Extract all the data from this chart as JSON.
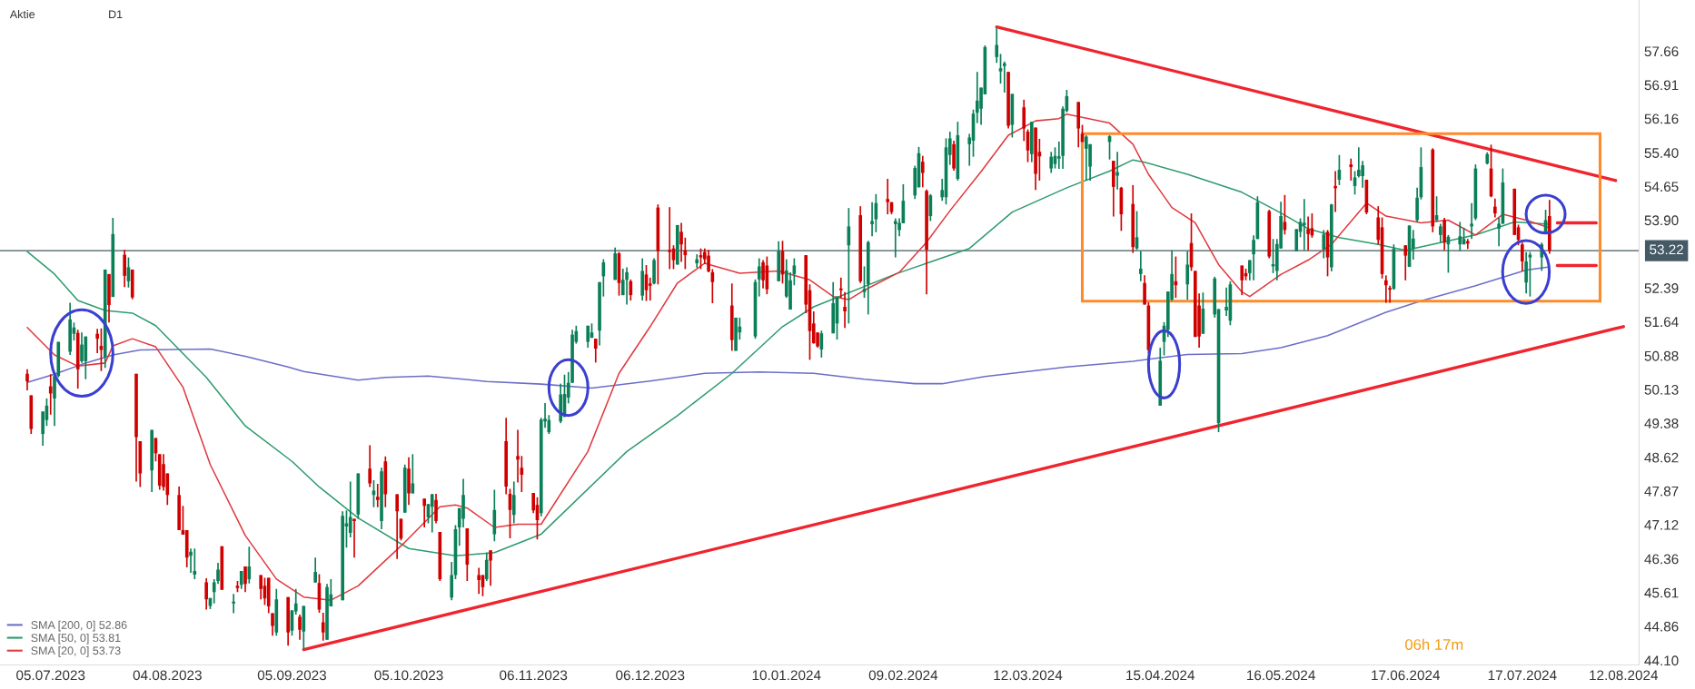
{
  "chart_data": {
    "type": "candlestick",
    "annotations": [
      "Aktie",
      "D1",
      "06h 17m"
    ],
    "x": [
      "2023-06-29",
      "2023-06-30",
      "2023-07-03",
      "2023-07-04",
      "2023-07-05",
      "2023-07-06",
      "2023-07-07",
      "2023-07-10",
      "2023-07-11",
      "2023-07-12",
      "2023-07-13",
      "2023-07-14",
      "2023-07-17",
      "2023-07-18",
      "2023-07-19",
      "2023-07-20",
      "2023-07-21",
      "2023-07-24",
      "2023-07-25",
      "2023-07-26",
      "2023-07-27",
      "2023-07-28",
      "2023-07-31",
      "2023-08-01",
      "2023-08-02",
      "2023-08-03",
      "2023-08-04",
      "2023-08-07",
      "2023-08-08",
      "2023-08-09",
      "2023-08-10",
      "2023-08-11",
      "2023-08-14",
      "2023-08-15",
      "2023-08-16",
      "2023-08-17",
      "2023-08-18",
      "2023-08-21",
      "2023-08-22",
      "2023-08-23",
      "2023-08-24",
      "2023-08-25",
      "2023-08-28",
      "2023-08-29",
      "2023-08-30",
      "2023-08-31",
      "2023-09-01",
      "2023-09-04",
      "2023-09-05",
      "2023-09-06",
      "2023-09-07",
      "2023-09-08",
      "2023-09-11",
      "2023-09-12",
      "2023-09-13",
      "2023-09-14",
      "2023-09-15",
      "2023-09-18",
      "2023-09-19",
      "2023-09-20",
      "2023-09-21",
      "2023-09-22",
      "2023-09-25",
      "2023-09-26",
      "2023-09-27",
      "2023-09-28",
      "2023-09-29",
      "2023-10-02",
      "2023-10-03",
      "2023-10-04",
      "2023-10-05",
      "2023-10-06",
      "2023-10-09",
      "2023-10-10",
      "2023-10-11",
      "2023-10-12",
      "2023-10-13",
      "2023-10-16",
      "2023-10-17",
      "2023-10-18",
      "2023-10-19",
      "2023-10-20",
      "2023-10-23",
      "2023-10-24",
      "2023-10-25",
      "2023-10-26",
      "2023-10-27",
      "2023-10-30",
      "2023-10-31",
      "2023-11-01",
      "2023-11-02",
      "2023-11-03",
      "2023-11-06",
      "2023-11-07",
      "2023-11-08",
      "2023-11-09",
      "2023-11-10",
      "2023-11-13",
      "2023-11-14",
      "2023-11-15",
      "2023-11-16",
      "2023-11-17",
      "2023-11-20",
      "2023-11-21",
      "2023-11-22",
      "2023-11-23",
      "2023-11-24",
      "2023-11-27",
      "2023-11-28",
      "2023-11-29",
      "2023-11-30",
      "2023-12-01",
      "2023-12-04",
      "2023-12-05",
      "2023-12-06",
      "2023-12-07",
      "2023-12-08",
      "2023-12-11",
      "2023-12-12",
      "2023-12-13",
      "2023-12-14",
      "2023-12-15",
      "2023-12-18",
      "2023-12-19",
      "2023-12-20",
      "2023-12-21",
      "2023-12-22",
      "2023-12-27",
      "2023-12-28",
      "2023-12-29",
      "2024-01-02",
      "2024-01-03",
      "2024-01-04",
      "2024-01-05",
      "2024-01-08",
      "2024-01-09",
      "2024-01-10",
      "2024-01-11",
      "2024-01-12",
      "2024-01-15",
      "2024-01-16",
      "2024-01-17",
      "2024-01-18",
      "2024-01-19",
      "2024-01-22",
      "2024-01-23",
      "2024-01-24",
      "2024-01-25",
      "2024-01-26",
      "2024-01-29",
      "2024-01-30",
      "2024-01-31",
      "2024-02-01",
      "2024-02-02",
      "2024-02-05",
      "2024-02-06",
      "2024-02-07",
      "2024-02-08",
      "2024-02-09",
      "2024-02-12",
      "2024-02-13",
      "2024-02-14",
      "2024-02-15",
      "2024-02-16",
      "2024-02-19",
      "2024-02-20",
      "2024-02-21",
      "2024-02-22",
      "2024-02-23",
      "2024-02-26",
      "2024-02-27",
      "2024-02-28",
      "2024-02-29",
      "2024-03-01",
      "2024-03-04",
      "2024-03-05",
      "2024-03-06",
      "2024-03-07",
      "2024-03-08",
      "2024-03-11",
      "2024-03-12",
      "2024-03-13",
      "2024-03-14",
      "2024-03-15",
      "2024-03-18",
      "2024-03-19",
      "2024-03-20",
      "2024-03-21",
      "2024-03-22",
      "2024-03-25",
      "2024-03-26",
      "2024-03-27",
      "2024-03-28",
      "2024-04-02",
      "2024-04-03",
      "2024-04-04",
      "2024-04-05",
      "2024-04-08",
      "2024-04-09",
      "2024-04-10",
      "2024-04-11",
      "2024-04-12",
      "2024-04-15",
      "2024-04-16",
      "2024-04-17",
      "2024-04-18",
      "2024-04-19",
      "2024-04-22",
      "2024-04-23",
      "2024-04-24",
      "2024-04-25",
      "2024-04-26",
      "2024-04-29",
      "2024-04-30",
      "2024-05-02",
      "2024-05-03",
      "2024-05-06",
      "2024-05-07",
      "2024-05-08",
      "2024-05-09",
      "2024-05-10",
      "2024-05-13",
      "2024-05-14",
      "2024-05-15",
      "2024-05-16",
      "2024-05-17",
      "2024-05-20",
      "2024-05-21",
      "2024-05-22",
      "2024-05-23",
      "2024-05-24",
      "2024-05-27",
      "2024-05-28",
      "2024-05-29",
      "2024-05-30",
      "2024-05-31",
      "2024-06-03",
      "2024-06-04",
      "2024-06-05",
      "2024-06-06",
      "2024-06-07",
      "2024-06-10",
      "2024-06-11",
      "2024-06-12",
      "2024-06-13",
      "2024-06-14",
      "2024-06-17",
      "2024-06-18",
      "2024-06-19",
      "2024-06-20",
      "2024-06-21",
      "2024-06-24",
      "2024-06-25",
      "2024-06-26",
      "2024-06-27",
      "2024-06-28",
      "2024-07-01",
      "2024-07-02",
      "2024-07-03",
      "2024-07-04",
      "2024-07-05",
      "2024-07-08",
      "2024-07-09",
      "2024-07-10",
      "2024-07-11",
      "2024-07-12",
      "2024-07-15",
      "2024-07-16",
      "2024-07-17",
      "2024-07-18",
      "2024-07-19",
      "2024-07-22",
      "2024-07-23",
      "2024-07-24"
    ],
    "ohlc": [
      [
        50.48,
        50.58,
        50.11,
        50.31
      ],
      [
        50.0,
        50.0,
        49.14,
        49.25
      ],
      [
        49.14,
        49.64,
        48.88,
        49.64
      ],
      [
        49.45,
        49.93,
        49.32,
        49.77
      ],
      [
        50.2,
        50.47,
        49.57,
        50.04
      ],
      [
        49.93,
        50.43,
        49.32,
        50.43
      ],
      [
        50.43,
        51.19,
        50.4,
        51.19
      ],
      [
        50.97,
        52.06,
        50.9,
        51.69
      ],
      [
        51.37,
        51.62,
        51.22,
        51.51
      ],
      [
        51.39,
        51.46,
        50.15,
        50.58
      ],
      [
        50.76,
        51.4,
        50.72,
        51.13
      ],
      [
        50.76,
        51.31,
        50.36,
        51.31
      ],
      [
        51.37,
        51.48,
        50.94,
        51.26
      ],
      [
        51.1,
        51.49,
        50.54,
        51.01
      ],
      [
        50.86,
        52.8,
        50.61,
        52.8
      ],
      [
        52.7,
        52.7,
        51.62,
        52.01
      ],
      [
        52.19,
        53.95,
        52.19,
        53.59
      ],
      [
        53.13,
        53.24,
        52.41,
        52.66
      ],
      [
        52.54,
        53.07,
        52.4,
        52.85
      ],
      [
        52.8,
        52.8,
        52.14,
        52.18
      ],
      [
        50.48,
        50.48,
        48.08,
        49.07
      ],
      [
        48.98,
        48.98,
        47.96,
        48.26
      ],
      [
        48.33,
        49.23,
        47.85,
        49.23
      ],
      [
        49.05,
        49.05,
        48.53,
        48.71
      ],
      [
        48.69,
        48.69,
        47.9,
        47.99
      ],
      [
        48.47,
        48.69,
        47.88,
        47.96
      ],
      [
        48.26,
        48.26,
        47.56,
        47.78
      ],
      [
        47.78,
        47.97,
        47.0,
        47.0
      ],
      [
        47.0,
        47.54,
        46.9,
        46.9
      ],
      [
        47.0,
        47.0,
        46.17,
        46.39
      ],
      [
        46.43,
        46.59,
        46.05,
        46.52
      ],
      [
        46.01,
        46.59,
        45.91,
        46.09
      ],
      [
        45.84,
        45.93,
        45.23,
        45.46
      ],
      [
        45.31,
        45.49,
        45.24,
        45.49
      ],
      [
        45.62,
        45.91,
        45.37,
        45.84
      ],
      [
        45.87,
        46.27,
        45.8,
        46.12
      ],
      [
        46.64,
        46.64,
        45.67,
        45.67
      ],
      [
        45.37,
        45.58,
        45.15,
        45.41
      ],
      [
        45.76,
        45.87,
        45.62,
        45.71
      ],
      [
        45.78,
        46.09,
        45.69,
        46.09
      ],
      [
        46.19,
        46.19,
        45.62,
        45.8
      ],
      [
        45.91,
        46.63,
        45.81,
        46.19
      ],
      [
        46.0,
        46.0,
        45.46,
        45.69
      ],
      [
        45.76,
        45.94,
        45.33,
        45.48
      ],
      [
        45.94,
        45.94,
        45.15,
        45.3
      ],
      [
        45.15,
        45.15,
        44.65,
        44.87
      ],
      [
        44.72,
        45.69,
        44.65,
        45.46
      ],
      [
        45.51,
        45.51,
        44.43,
        44.72
      ],
      [
        44.76,
        45.22,
        44.65,
        45.21
      ],
      [
        45.19,
        45.69,
        45.12,
        45.37
      ],
      [
        45.07,
        45.12,
        44.56,
        44.78
      ],
      [
        44.74,
        45.31,
        44.35,
        45.31
      ],
      [
        45.83,
        46.39,
        45.83,
        46.07
      ],
      [
        45.82,
        46.02,
        45.16,
        45.23
      ],
      [
        44.95,
        45.16,
        44.54,
        44.72
      ],
      [
        44.56,
        45.8,
        44.56,
        45.73
      ],
      [
        45.3,
        45.91,
        45.3,
        45.57
      ],
      [
        45.44,
        47.42,
        45.44,
        47.32
      ],
      [
        47.08,
        47.44,
        46.61,
        47.15
      ],
      [
        46.94,
        48.08,
        46.84,
        47.29
      ],
      [
        47.25,
        47.25,
        46.39,
        47.2
      ],
      [
        47.35,
        48.26,
        47.25,
        48.26
      ],
      [
        48.37,
        48.89,
        47.96,
        48.04
      ],
      [
        47.78,
        48.11,
        47.51,
        47.88
      ],
      [
        47.74,
        48.03,
        47.51,
        47.67
      ],
      [
        47.2,
        48.39,
        47.02,
        48.31
      ],
      [
        48.53,
        48.64,
        47.51,
        47.8
      ],
      [
        47.8,
        47.8,
        46.36,
        47.42
      ],
      [
        47.25,
        47.25,
        46.77,
        46.81
      ],
      [
        47.39,
        48.46,
        47.39,
        48.39
      ],
      [
        48.37,
        48.62,
        47.56,
        47.82
      ],
      [
        47.82,
        48.69,
        47.82,
        48.04
      ],
      [
        47.7,
        47.7,
        47.06,
        47.54
      ],
      [
        47.28,
        47.58,
        47.15,
        47.58
      ],
      [
        47.52,
        47.81,
        46.95,
        47.8
      ],
      [
        47.67,
        47.81,
        47.15,
        47.2
      ],
      [
        46.96,
        46.96,
        45.87,
        45.91
      ],
      [
        45.5,
        46.29,
        45.44,
        46.0
      ],
      [
        46.0,
        47.11,
        45.91,
        47.02
      ],
      [
        47.06,
        47.49,
        46.65,
        47.49
      ],
      [
        47.25,
        48.14,
        47.06,
        47.78
      ],
      [
        47.04,
        47.04,
        45.87,
        46.23
      ],
      [
        46.0,
        46.16,
        45.58,
        45.89
      ],
      [
        46.0,
        46.0,
        45.53,
        45.73
      ],
      [
        45.91,
        46.5,
        45.87,
        46.34
      ],
      [
        46.55,
        46.55,
        45.76,
        46.32
      ],
      [
        46.91,
        47.9,
        46.75,
        47.45
      ],
      [
        48.98,
        49.5,
        47.8,
        47.97
      ],
      [
        47.81,
        47.92,
        46.82,
        47.45
      ],
      [
        47.34,
        48.08,
        47.15,
        47.78
      ],
      [
        48.65,
        49.23,
        48.06,
        48.57
      ],
      [
        48.39,
        48.65,
        47.85,
        48.23
      ],
      [
        47.83,
        47.83,
        47.38,
        47.44
      ],
      [
        47.56,
        47.73,
        46.79,
        47.22
      ],
      [
        47.38,
        49.5,
        47.31,
        49.46
      ],
      [
        49.42,
        49.83,
        49.28,
        49.48
      ],
      [
        49.18,
        49.56,
        49.14,
        49.45
      ],
      [
        49.42,
        50.26,
        49.38,
        50.02
      ],
      [
        49.52,
        50.46,
        49.52,
        50.03
      ],
      [
        49.95,
        50.52,
        49.82,
        50.28
      ],
      [
        50.28,
        51.46,
        50.28,
        51.35
      ],
      [
        51.19,
        51.55,
        51.15,
        51.43
      ],
      [
        51.19,
        51.55,
        51.06,
        51.55
      ],
      [
        51.28,
        51.6,
        51.28,
        51.4
      ],
      [
        51.26,
        51.26,
        50.73,
        51.04
      ],
      [
        51.44,
        52.52,
        51.11,
        52.52
      ],
      [
        52.65,
        53.03,
        52.2,
        52.96
      ],
      [
        52.57,
        53.29,
        52.57,
        53.16
      ],
      [
        53.16,
        53.19,
        52.22,
        52.5
      ],
      [
        52.23,
        52.82,
        52.23,
        52.57
      ],
      [
        52.57,
        52.85,
        52.02,
        52.74
      ],
      [
        52.54,
        52.58,
        52.11,
        52.23
      ],
      [
        52.22,
        53.05,
        52.11,
        52.77
      ],
      [
        52.69,
        52.9,
        52.1,
        52.34
      ],
      [
        52.49,
        52.62,
        52.11,
        52.44
      ],
      [
        52.49,
        53.05,
        52.47,
        53.01
      ],
      [
        54.18,
        54.25,
        52.47,
        53.21
      ],
      [
        53.24,
        54.19,
        52.81,
        53.19
      ],
      [
        53.27,
        53.34,
        52.81,
        53.01
      ],
      [
        52.91,
        53.79,
        52.91,
        53.79
      ],
      [
        53.64,
        53.84,
        52.97,
        53.36
      ],
      [
        53.23,
        53.51,
        52.81,
        53.12
      ],
      [
        52.94,
        53.14,
        52.84,
        53.03
      ],
      [
        53.12,
        53.27,
        52.81,
        53.07
      ],
      [
        53.19,
        53.27,
        52.92,
        53.03
      ],
      [
        53.11,
        53.24,
        52.74,
        52.76
      ],
      [
        52.74,
        52.81,
        52.05,
        52.52
      ],
      [
        52.0,
        52.49,
        50.99,
        51.23
      ],
      [
        50.99,
        51.73,
        50.99,
        51.73
      ],
      [
        51.4,
        51.73,
        51.24,
        51.53
      ],
      [
        51.31,
        52.58,
        51.26,
        52.52
      ],
      [
        52.58,
        53.05,
        52.2,
        52.87
      ],
      [
        52.96,
        53.01,
        52.38,
        52.56
      ],
      [
        52.89,
        53.09,
        52.25,
        52.36
      ],
      [
        52.54,
        53.43,
        52.54,
        53.21
      ],
      [
        53.21,
        53.44,
        52.49,
        52.69
      ],
      [
        52.2,
        53.03,
        52.17,
        52.78
      ],
      [
        51.91,
        52.74,
        51.91,
        52.56
      ],
      [
        52.7,
        53.05,
        52.45,
        52.89
      ],
      [
        53.12,
        53.12,
        51.83,
        52.02
      ],
      [
        52.34,
        52.47,
        50.79,
        51.43
      ],
      [
        51.6,
        51.87,
        51.15,
        51.16
      ],
      [
        51.4,
        51.4,
        51.06,
        51.09
      ],
      [
        51.02,
        51.44,
        50.84,
        51.38
      ],
      [
        51.38,
        52.52,
        51.38,
        52.05
      ],
      [
        51.6,
        52.2,
        51.24,
        52.2
      ],
      [
        52.38,
        52.62,
        52.17,
        52.34
      ],
      [
        51.97,
        52.3,
        51.5,
        51.87
      ],
      [
        53.34,
        54.17,
        51.6,
        53.76
      ],
      [
        54.01,
        54.21,
        52.5,
        52.54
      ],
      [
        52.3,
        52.87,
        52.17,
        52.37
      ],
      [
        52.47,
        53.44,
        51.8,
        53.41
      ],
      [
        53.81,
        54.3,
        53.54,
        53.88
      ],
      [
        53.92,
        54.48,
        53.63,
        54.28
      ],
      [
        54.37,
        54.82,
        54.03,
        54.3
      ],
      [
        54.3,
        54.3,
        54.03,
        54.08
      ],
      [
        53.81,
        53.94,
        53.07,
        53.88
      ],
      [
        53.68,
        53.94,
        53.54,
        53.84
      ],
      [
        53.83,
        54.7,
        53.83,
        54.33
      ],
      [
        54.45,
        55.11,
        54.37,
        55.06
      ],
      [
        54.63,
        55.53,
        54.63,
        55.39
      ],
      [
        55.2,
        55.33,
        54.63,
        54.95
      ],
      [
        54.55,
        54.58,
        52.25,
        53.24
      ],
      [
        53.99,
        54.48,
        53.88,
        54.45
      ],
      [
        54.41,
        54.82,
        54.33,
        54.57
      ],
      [
        54.41,
        55.72,
        54.25,
        55.52
      ],
      [
        55.35,
        55.87,
        55.13,
        55.72
      ],
      [
        55.59,
        55.67,
        55.0,
        55.05
      ],
      [
        54.82,
        56.09,
        54.78,
        55.79
      ],
      [
        55.59,
        55.82,
        55.11,
        55.74
      ],
      [
        55.67,
        56.36,
        55.31,
        56.27
      ],
      [
        56.29,
        57.2,
        56.06,
        56.56
      ],
      [
        56.38,
        56.85,
        56.02,
        56.85
      ],
      [
        56.7,
        57.79,
        56.7,
        57.75
      ],
      [
        57.53,
        58.17,
        57.4,
        57.8
      ],
      [
        57.21,
        57.6,
        56.94,
        57.28
      ],
      [
        57.33,
        57.43,
        56.74,
        57.39
      ],
      [
        57.2,
        57.2,
        55.94,
        56.0
      ],
      [
        56.02,
        56.71,
        55.74,
        56.71
      ],
      [
        56.41,
        56.58,
        55.66,
        55.94
      ],
      [
        55.87,
        55.92,
        55.19,
        55.45
      ],
      [
        55.37,
        56.09,
        55.19,
        56.09
      ],
      [
        55.96,
        55.96,
        54.57,
        54.93
      ],
      [
        55.42,
        55.71,
        54.78,
        55.32
      ],
      [
        55.05,
        55.42,
        54.95,
        55.31
      ],
      [
        55.15,
        55.52,
        55.05,
        55.33
      ],
      [
        55.27,
        55.65,
        55.04,
        55.32
      ],
      [
        55.33,
        56.43,
        55.04,
        56.38
      ],
      [
        56.33,
        56.8,
        56.3,
        56.66
      ],
      [
        56.53,
        56.53,
        55.52,
        55.94
      ],
      [
        55.82,
        56.02,
        55.64,
        55.64
      ],
      [
        55.49,
        55.79,
        54.78,
        55.76
      ],
      [
        55.09,
        55.59,
        54.78,
        55.59
      ],
      [
        55.64,
        55.79,
        55.25,
        55.77
      ],
      [
        55.22,
        55.22,
        53.98,
        54.64
      ],
      [
        54.89,
        55.42,
        54.58,
        54.97
      ],
      [
        54.62,
        54.64,
        53.66,
        54.03
      ],
      [
        54.26,
        54.68,
        53.17,
        53.3
      ],
      [
        53.27,
        54.1,
        53.24,
        53.52
      ],
      [
        52.7,
        53.21,
        52.54,
        52.82
      ],
      [
        52.5,
        52.67,
        52.02,
        52.02
      ],
      [
        52.0,
        52.07,
        50.93,
        51.01
      ],
      [
        49.77,
        51.06,
        49.77,
        50.77
      ],
      [
        51.19,
        51.63,
        50.89,
        51.55
      ],
      [
        51.46,
        52.31,
        51.3,
        52.31
      ],
      [
        52.13,
        53.23,
        52.1,
        52.7
      ],
      [
        52.54,
        53.09,
        52.17,
        52.45
      ],
      [
        52.47,
        53.21,
        52.13,
        52.91
      ],
      [
        53.39,
        54.05,
        52.77,
        52.85
      ],
      [
        52.77,
        52.77,
        51.3,
        51.3
      ],
      [
        52.0,
        52.27,
        51.06,
        51.31
      ],
      [
        51.37,
        52.29,
        51.37,
        51.93
      ],
      [
        51.8,
        52.64,
        51.73,
        52.6
      ],
      [
        49.38,
        51.92,
        49.18,
        51.92
      ],
      [
        51.89,
        52.4,
        51.77,
        51.97
      ],
      [
        51.66,
        52.54,
        51.56,
        52.47
      ],
      [
        52.89,
        52.89,
        52.23,
        52.56
      ],
      [
        52.72,
        52.82,
        52.56,
        52.65
      ],
      [
        52.72,
        53.01,
        52.56,
        53.01
      ],
      [
        53.14,
        53.56,
        52.56,
        53.46
      ],
      [
        53.48,
        54.43,
        53.48,
        54.3
      ],
      [
        54.1,
        54.13,
        53.05,
        53.09
      ],
      [
        52.87,
        53.48,
        52.72,
        52.92
      ],
      [
        52.77,
        53.48,
        52.56,
        53.37
      ],
      [
        53.27,
        54.31,
        53.27,
        53.99
      ],
      [
        53.86,
        54.46,
        53.58,
        53.68
      ],
      [
        53.21,
        53.7,
        53.21,
        53.7
      ],
      [
        53.64,
        53.94,
        53.52,
        53.86
      ],
      [
        53.79,
        54.37,
        53.23,
        53.84
      ],
      [
        53.7,
        53.98,
        53.23,
        53.59
      ],
      [
        53.72,
        54.05,
        53.51,
        53.56
      ],
      [
        53.25,
        53.68,
        53.05,
        53.58
      ],
      [
        53.64,
        53.68,
        52.65,
        53.07
      ],
      [
        52.85,
        54.26,
        52.76,
        54.25
      ],
      [
        54.66,
        54.99,
        54.08,
        54.61
      ],
      [
        54.8,
        55.35,
        54.68,
        55.02
      ],
      [
        55.14,
        55.27,
        54.78,
        55.08
      ],
      [
        54.66,
        54.99,
        54.47,
        54.85
      ],
      [
        54.88,
        55.52,
        54.85,
        55.02
      ],
      [
        54.88,
        55.22,
        54.62,
        55.12
      ],
      [
        54.8,
        54.8,
        54.03,
        54.07
      ],
      [
        53.96,
        54.21,
        53.36,
        53.46
      ],
      [
        53.74,
        53.96,
        52.6,
        52.7
      ],
      [
        52.56,
        52.67,
        52.06,
        52.45
      ],
      [
        52.39,
        52.44,
        52.06,
        52.35
      ],
      [
        52.37,
        53.36,
        52.35,
        53.26
      ],
      [
        53.34,
        53.34,
        52.56,
        53.11
      ],
      [
        52.86,
        53.78,
        52.86,
        53.78
      ],
      [
        53.27,
        53.68,
        53.02,
        53.49
      ],
      [
        53.9,
        54.62,
        53.86,
        54.4
      ],
      [
        54.41,
        55.52,
        54.36,
        55.08
      ],
      [
        55.47,
        55.5,
        53.63,
        53.76
      ],
      [
        53.9,
        54.43,
        53.86,
        54.01
      ],
      [
        53.57,
        53.82,
        53.4,
        53.76
      ],
      [
        53.9,
        53.95,
        53.23,
        53.4
      ],
      [
        53.36,
        53.57,
        52.73,
        53.53
      ],
      [
        53.36,
        53.86,
        53.21,
        53.54
      ],
      [
        53.36,
        53.73,
        53.36,
        53.48
      ],
      [
        53.43,
        53.48,
        53.26,
        53.38
      ],
      [
        53.76,
        54.28,
        53.48,
        53.82
      ],
      [
        53.94,
        55.14,
        53.9,
        55.05
      ],
      [
        55.16,
        55.41,
        55.14,
        55.37
      ],
      [
        55.05,
        55.58,
        54.41,
        54.43
      ],
      [
        54.2,
        54.38,
        53.96,
        54.05
      ],
      [
        53.71,
        53.95,
        53.32,
        53.82
      ],
      [
        53.82,
        55.05,
        53.82,
        54.74
      ],
      [
        54.6,
        54.6,
        53.57,
        53.57
      ],
      [
        53.74,
        53.8,
        53.34,
        53.46
      ],
      [
        53.36,
        53.4,
        52.77,
        52.98
      ],
      [
        52.51,
        53.19,
        52.27,
        52.98
      ],
      [
        53.07,
        53.19,
        52.2,
        53.13
      ],
      [
        53.07,
        53.4,
        52.77,
        53.36
      ],
      [
        53.65,
        54.13,
        53.63,
        53.9
      ],
      [
        53.99,
        54.35,
        53.15,
        53.22
      ]
    ],
    "series": [
      {
        "name": "SMA [200, 0] 52.86",
        "type": "line",
        "color": "#6b6fc7",
        "x": [
          "2023-06-29",
          "2023-07-06",
          "2023-07-13",
          "2023-07-21",
          "2023-07-28",
          "2023-08-15",
          "2023-08-24",
          "2023-09-04",
          "2023-09-08",
          "2023-09-22",
          "2023-09-29",
          "2023-10-10",
          "2023-10-25",
          "2023-11-08",
          "2023-11-21",
          "2023-12-06",
          "2023-12-20",
          "2024-01-03",
          "2024-01-17",
          "2024-01-30",
          "2024-02-12",
          "2024-02-19",
          "2024-03-01",
          "2024-03-22",
          "2024-04-08",
          "2024-04-22",
          "2024-05-06",
          "2024-05-16",
          "2024-05-28",
          "2024-06-12",
          "2024-06-21",
          "2024-07-05",
          "2024-07-18",
          "2024-07-24"
        ],
        "values": [
          50.29,
          50.47,
          50.69,
          50.9,
          51.01,
          51.03,
          50.87,
          50.63,
          50.53,
          50.34,
          50.4,
          50.43,
          50.31,
          50.25,
          50.16,
          50.32,
          50.49,
          50.52,
          50.49,
          50.36,
          50.26,
          50.26,
          50.42,
          50.63,
          50.76,
          50.91,
          50.93,
          51.06,
          51.33,
          51.85,
          52.1,
          52.44,
          52.79,
          52.86
        ]
      },
      {
        "name": "SMA [50, 0] 53.81",
        "type": "line",
        "color": "#2e9b6e",
        "x": [
          "2023-06-29",
          "2023-07-06",
          "2023-07-12",
          "2023-07-19",
          "2023-07-26",
          "2023-08-01",
          "2023-08-14",
          "2023-08-24",
          "2023-09-05",
          "2023-09-12",
          "2023-09-22",
          "2023-10-05",
          "2023-10-17",
          "2023-10-27",
          "2023-11-08",
          "2023-11-30",
          "2023-12-13",
          "2023-12-27",
          "2024-01-09",
          "2024-01-17",
          "2024-02-07",
          "2024-02-15",
          "2024-02-26",
          "2024-03-08",
          "2024-03-22",
          "2024-04-02",
          "2024-04-08",
          "2024-04-11",
          "2024-04-22",
          "2024-05-06",
          "2024-05-16",
          "2024-05-23",
          "2024-05-31",
          "2024-06-10",
          "2024-06-17",
          "2024-06-26",
          "2024-07-05",
          "2024-07-15",
          "2024-07-24"
        ],
        "values": [
          53.2,
          52.7,
          52.11,
          51.89,
          51.83,
          51.55,
          50.4,
          49.32,
          48.53,
          47.96,
          47.27,
          46.59,
          46.43,
          46.5,
          46.91,
          48.75,
          49.55,
          50.49,
          51.53,
          51.97,
          52.7,
          52.94,
          53.27,
          54.08,
          54.62,
          54.99,
          55.24,
          55.19,
          54.92,
          54.52,
          54.06,
          53.71,
          53.51,
          53.36,
          53.23,
          53.4,
          53.57,
          53.86,
          53.81
        ]
      },
      {
        "name": "SMA [20, 0] 53.73",
        "type": "line",
        "color": "#e0393e",
        "x": [
          "2023-06-29",
          "2023-07-06",
          "2023-07-12",
          "2023-07-19",
          "2023-07-21",
          "2023-07-26",
          "2023-08-01",
          "2023-08-08",
          "2023-08-15",
          "2023-08-24",
          "2023-09-01",
          "2023-09-08",
          "2023-09-15",
          "2023-09-22",
          "2023-10-04",
          "2023-10-13",
          "2023-10-17",
          "2023-10-20",
          "2023-10-27",
          "2023-11-02",
          "2023-11-08",
          "2023-11-20",
          "2023-11-28",
          "2023-12-06",
          "2023-12-13",
          "2023-12-20",
          "2023-12-29",
          "2024-01-08",
          "2024-01-16",
          "2024-01-22",
          "2024-01-26",
          "2024-01-30",
          "2024-02-08",
          "2024-02-15",
          "2024-02-21",
          "2024-02-29",
          "2024-03-07",
          "2024-03-14",
          "2024-03-20",
          "2024-03-22",
          "2024-04-02",
          "2024-04-08",
          "2024-04-12",
          "2024-04-18",
          "2024-04-24",
          "2024-04-30",
          "2024-05-06",
          "2024-05-08",
          "2024-05-16",
          "2024-05-23",
          "2024-05-29",
          "2024-06-07",
          "2024-06-12",
          "2024-06-21",
          "2024-06-28",
          "2024-07-05",
          "2024-07-12",
          "2024-07-18",
          "2024-07-24"
        ],
        "values": [
          51.51,
          50.9,
          50.65,
          50.72,
          51.1,
          51.26,
          51.08,
          50.18,
          48.46,
          46.88,
          45.91,
          45.51,
          45.44,
          45.76,
          46.73,
          47.52,
          47.56,
          47.49,
          47.06,
          47.13,
          47.13,
          48.75,
          50.49,
          51.53,
          52.5,
          52.94,
          52.72,
          52.77,
          52.57,
          52.2,
          52.13,
          52.34,
          52.74,
          53.41,
          54.11,
          54.98,
          55.79,
          56.11,
          56.16,
          56.26,
          56.06,
          55.59,
          54.92,
          54.18,
          53.84,
          52.91,
          52.3,
          52.2,
          52.69,
          53.01,
          53.36,
          54.28,
          53.99,
          53.84,
          53.9,
          53.57,
          54.03,
          53.9,
          53.73
        ]
      },
      {
        "type": "line",
        "color": "#f0242e",
        "x": [
          "2024-03-04",
          "2024-08-10"
        ],
        "values": [
          58.2,
          54.78
        ]
      },
      {
        "type": "line",
        "color": "#f0242e",
        "x": [
          "2023-09-08",
          "2024-08-12"
        ],
        "values": [
          44.34,
          51.53
        ]
      },
      {
        "type": "line",
        "color": "#f0242e",
        "x": [
          "2024-07-26",
          "2024-08-05"
        ],
        "values": [
          53.84,
          53.84
        ]
      },
      {
        "type": "line",
        "color": "#f0242e",
        "x": [
          "2024-07-26",
          "2024-08-05"
        ],
        "values": [
          52.89,
          52.89
        ]
      }
    ],
    "ref_lines": [
      {
        "axis": "y",
        "value": 53.22,
        "label": "53.22",
        "color": "#455a64"
      }
    ],
    "xlim": [
      "2023-06-22",
      "2024-08-16"
    ],
    "xticks": [
      {
        "value": "2023-07-05",
        "label": "05.07.2023"
      },
      {
        "value": "2023-08-04",
        "label": "04.08.2023"
      },
      {
        "value": "2023-09-05",
        "label": "05.09.2023"
      },
      {
        "value": "2023-10-05",
        "label": "05.10.2023"
      },
      {
        "value": "2023-11-06",
        "label": "06.11.2023"
      },
      {
        "value": "2023-12-06",
        "label": "06.12.2023"
      },
      {
        "value": "2024-01-10",
        "label": "10.01.2024"
      },
      {
        "value": "2024-02-09",
        "label": "09.02.2024"
      },
      {
        "value": "2024-03-12",
        "label": "12.03.2024"
      },
      {
        "value": "2024-04-15",
        "label": "15.04.2024"
      },
      {
        "value": "2024-05-16",
        "label": "16.05.2024"
      },
      {
        "value": "2024-06-17",
        "label": "17.06.2024"
      },
      {
        "value": "2024-07-17",
        "label": "17.07.2024"
      },
      {
        "value": "2024-08-12",
        "label": "12.08.2024"
      }
    ],
    "ylim": [
      44.0,
      58.8
    ],
    "yticks": [
      {
        "value": 44.1,
        "label": "44.10"
      },
      44.86,
      45.61,
      46.36,
      47.12,
      47.87,
      48.62,
      49.38,
      50.13,
      50.88,
      51.64,
      52.39,
      {
        "value": 53.9,
        "label": "53.90"
      },
      54.65,
      {
        "value": 55.4,
        "label": "55.40"
      },
      56.16,
      56.91,
      57.66
    ],
    "grid": false,
    "legend": "bottom left"
  }
}
